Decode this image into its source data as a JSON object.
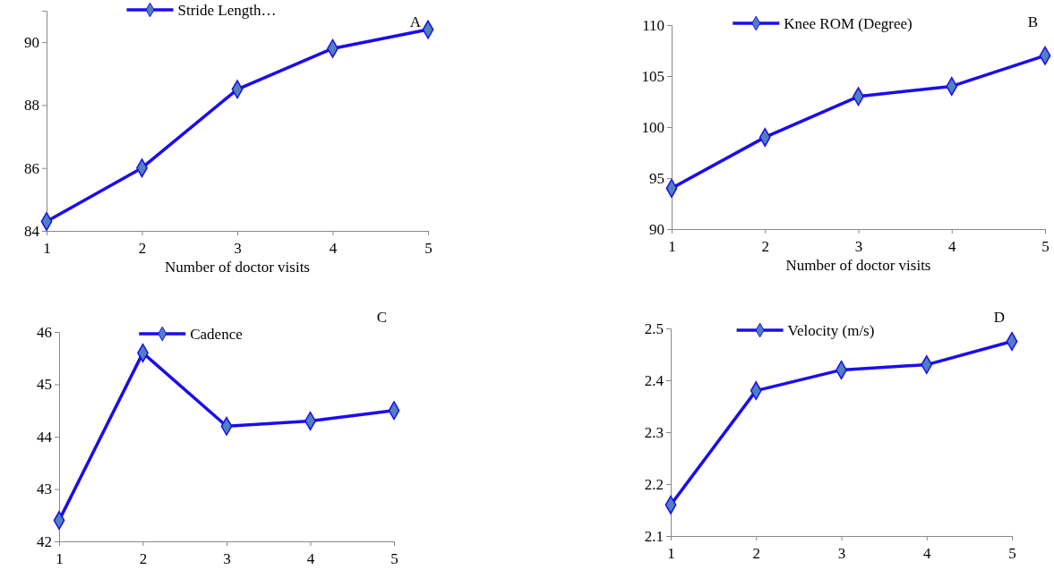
{
  "chart_data": [
    {
      "type": "line",
      "xlabel": "Number of doctor visits",
      "x": [
        1,
        2,
        3,
        4,
        5
      ],
      "xlim": [
        1,
        5
      ],
      "xticks": [
        1,
        2,
        3,
        4,
        5
      ],
      "ylim": [
        84,
        91
      ],
      "yticks": [
        84,
        86,
        88,
        90
      ],
      "marker": "diamond",
      "legend": "top",
      "grid": false,
      "annotations": [
        "A"
      ],
      "series": [
        {
          "name": "Stride Length…",
          "color": "#1a0cf0",
          "values": [
            84.3,
            86.0,
            88.5,
            89.8,
            90.4
          ]
        }
      ]
    },
    {
      "type": "line",
      "xlabel": "Number of doctor visits",
      "x": [
        1,
        2,
        3,
        4,
        5
      ],
      "xlim": [
        1,
        5
      ],
      "xticks": [
        1,
        2,
        3,
        4,
        5
      ],
      "ylim": [
        90,
        110
      ],
      "yticks": [
        90,
        95,
        100,
        105,
        110
      ],
      "marker": "diamond",
      "legend": "top",
      "grid": false,
      "annotations": [
        "B"
      ],
      "series": [
        {
          "name": "Knee ROM (Degree)",
          "color": "#1a0cf0",
          "values": [
            94,
            99,
            103,
            104,
            107
          ]
        }
      ]
    },
    {
      "type": "line",
      "x": [
        1,
        2,
        3,
        4,
        5
      ],
      "xlim": [
        1,
        5
      ],
      "xticks": [
        1,
        2,
        3,
        4,
        5
      ],
      "ylim": [
        42,
        46
      ],
      "yticks": [
        42,
        43,
        44,
        45,
        46
      ],
      "marker": "diamond",
      "legend": "top",
      "grid": false,
      "annotations": [
        "C"
      ],
      "series": [
        {
          "name": "Cadence",
          "color": "#1a0cf0",
          "values": [
            42.4,
            45.6,
            44.2,
            44.3,
            44.5
          ]
        }
      ]
    },
    {
      "type": "line",
      "x": [
        1,
        2,
        3,
        4,
        5
      ],
      "xlim": [
        1,
        5
      ],
      "xticks": [
        1,
        2,
        3,
        4,
        5
      ],
      "ylim": [
        2.1,
        2.5
      ],
      "yticks": [
        2.1,
        2.2,
        2.3,
        2.4,
        2.5
      ],
      "marker": "diamond",
      "legend": "top",
      "grid": false,
      "annotations": [
        "D"
      ],
      "series": [
        {
          "name": "Velocity (m/s)",
          "color": "#1a0cf0",
          "values": [
            2.16,
            2.38,
            2.42,
            2.43,
            2.475
          ]
        }
      ]
    }
  ]
}
